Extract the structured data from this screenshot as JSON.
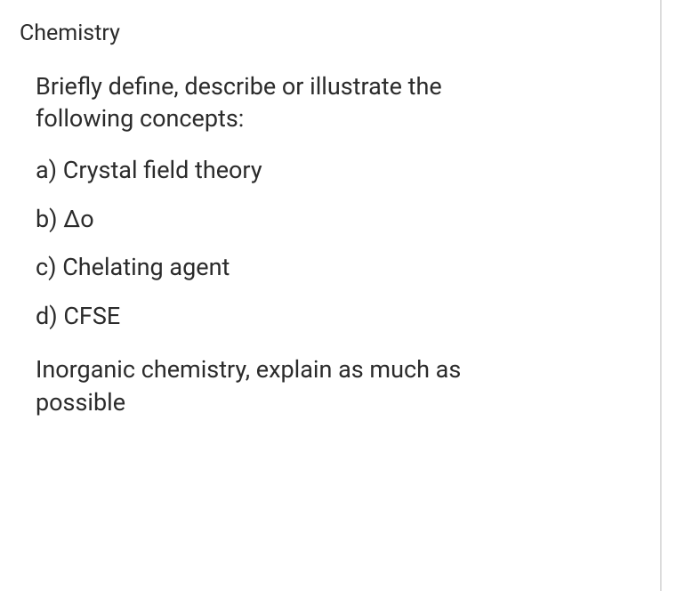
{
  "document": {
    "subject": "Chemistry",
    "prompt": "Briefly define, describe or illustrate the following concepts:",
    "items": [
      {
        "label": "a) Crystal field theory"
      },
      {
        "label": "b) Δo"
      },
      {
        "label": "c) Chelating agent"
      },
      {
        "label": "d) CFSE"
      }
    ],
    "footer_note": "Inorganic chemistry, explain as much as possible",
    "text_color": "#2b2b2b",
    "background_color": "#ffffff",
    "subject_fontsize": 25,
    "body_fontsize": 27,
    "line_height": 1.35,
    "scrollbar_border_color": "#e4e4e4",
    "page_border_color": "#d9d9d9"
  }
}
